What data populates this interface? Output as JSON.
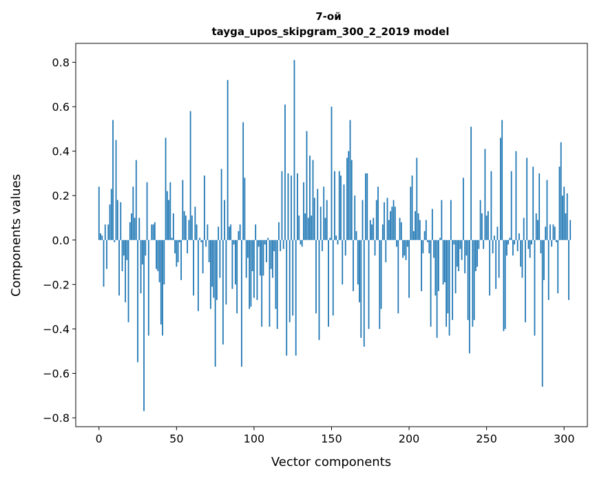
{
  "chart_data": {
    "type": "bar",
    "title": "7-ой",
    "subtitle": "tayga_upos_skipgram_300_2_2019 model",
    "xlabel": "Vector components",
    "ylabel": "Components values",
    "xlim": [
      -15,
      315
    ],
    "ylim": [
      -0.84,
      0.885
    ],
    "xticks": [
      0,
      50,
      100,
      150,
      200,
      250,
      300
    ],
    "xtick_labels": [
      "0",
      "50",
      "100",
      "150",
      "200",
      "250",
      "300"
    ],
    "yticks": [
      -0.8,
      -0.6,
      -0.4,
      -0.2,
      0.0,
      0.2,
      0.4,
      0.6,
      0.8
    ],
    "ytick_labels": [
      "−0.8",
      "−0.6",
      "−0.4",
      "−0.2",
      "0.0",
      "0.2",
      "0.4",
      "0.6",
      "0.8"
    ],
    "bar_color": "#1f77b4",
    "bar_width": 0.8,
    "values": [
      0.24,
      0.03,
      0.02,
      -0.21,
      0.07,
      -0.13,
      0.07,
      0.16,
      0.23,
      0.54,
      -0.01,
      0.45,
      0.18,
      -0.25,
      0.17,
      -0.14,
      -0.07,
      -0.28,
      -0.09,
      -0.37,
      0.08,
      0.12,
      0.24,
      0.1,
      0.36,
      -0.55,
      0.1,
      -0.24,
      -0.11,
      -0.77,
      -0.07,
      0.26,
      -0.43,
      0.0,
      0.07,
      0.07,
      0.08,
      -0.13,
      -0.14,
      -0.19,
      -0.38,
      -0.43,
      -0.2,
      0.46,
      0.22,
      0.18,
      0.26,
      0.01,
      0.12,
      -0.06,
      -0.12,
      -0.1,
      -0.01,
      -0.18,
      0.27,
      0.13,
      0.11,
      -0.06,
      0.09,
      0.58,
      0.11,
      -0.25,
      0.15,
      0.07,
      -0.32,
      0.01,
      -0.01,
      -0.15,
      0.29,
      -0.03,
      0.07,
      -0.1,
      -0.31,
      -0.21,
      -0.26,
      -0.57,
      -0.27,
      0.06,
      -0.17,
      0.32,
      -0.47,
      0.18,
      -0.29,
      0.72,
      0.06,
      0.07,
      -0.22,
      -0.02,
      -0.2,
      -0.33,
      0.04,
      0.07,
      -0.57,
      0.53,
      0.28,
      -0.17,
      -0.08,
      -0.31,
      -0.3,
      -0.14,
      -0.26,
      0.07,
      -0.27,
      -0.03,
      -0.16,
      -0.39,
      -0.16,
      -0.02,
      -0.1,
      0.01,
      -0.39,
      -0.13,
      -0.17,
      -0.05,
      -0.31,
      -0.4,
      0.08,
      -0.05,
      0.31,
      -0.04,
      0.61,
      -0.52,
      0.3,
      -0.37,
      0.29,
      -0.34,
      0.81,
      -0.52,
      0.3,
      0.11,
      -0.02,
      -0.03,
      0.26,
      0.12,
      0.49,
      0.1,
      0.38,
      0.11,
      0.36,
      0.19,
      -0.33,
      0.23,
      -0.45,
      0.15,
      -0.05,
      0.24,
      0.1,
      0.18,
      -0.39,
      0.01,
      0.6,
      -0.34,
      0.31,
      0.02,
      -0.02,
      0.31,
      0.29,
      -0.2,
      0.25,
      -0.07,
      0.37,
      0.4,
      0.54,
      0.36,
      -0.23,
      0.2,
      0.04,
      -0.2,
      -0.28,
      -0.44,
      0.18,
      -0.48,
      0.3,
      0.3,
      -0.4,
      0.09,
      0.07,
      0.1,
      -0.07,
      0.18,
      0.24,
      -0.4,
      -0.31,
      0.07,
      0.17,
      -0.1,
      0.19,
      0.09,
      0.13,
      0.15,
      0.18,
      0.15,
      -0.03,
      -0.33,
      0.1,
      0.08,
      -0.08,
      -0.07,
      -0.09,
      -0.03,
      -0.26,
      0.24,
      0.29,
      0.04,
      0.13,
      0.37,
      0.12,
      0.09,
      -0.23,
      -0.06,
      0.04,
      0.09,
      -0.01,
      -0.06,
      -0.39,
      0.14,
      -0.08,
      -0.25,
      -0.44,
      -0.23,
      0.01,
      0.18,
      -0.2,
      -0.19,
      -0.39,
      -0.33,
      -0.43,
      0.18,
      -0.36,
      -0.02,
      -0.24,
      -0.12,
      -0.14,
      -0.04,
      -0.09,
      0.28,
      -0.15,
      -0.07,
      -0.36,
      -0.51,
      0.51,
      -0.39,
      -0.36,
      -0.14,
      -0.12,
      -0.04,
      0.18,
      0.12,
      -0.04,
      0.41,
      0.11,
      0.13,
      -0.25,
      0.31,
      -0.06,
      0.02,
      -0.22,
      0.06,
      -0.17,
      0.46,
      0.54,
      -0.41,
      -0.4,
      -0.07,
      -0.02,
      0.01,
      0.31,
      -0.07,
      -0.02,
      0.4,
      -0.05,
      0.03,
      -0.12,
      -0.17,
      0.1,
      -0.37,
      0.37,
      -0.04,
      -0.08,
      -0.02,
      0.33,
      -0.43,
      0.12,
      0.09,
      0.3,
      -0.06,
      -0.66,
      -0.18,
      0.06,
      0.27,
      -0.27,
      0.07,
      -0.03,
      0.07,
      0.06,
      -0.01,
      -0.24,
      0.33,
      0.44,
      0.2,
      0.24,
      0.12,
      0.21,
      -0.27,
      0.09
    ]
  }
}
